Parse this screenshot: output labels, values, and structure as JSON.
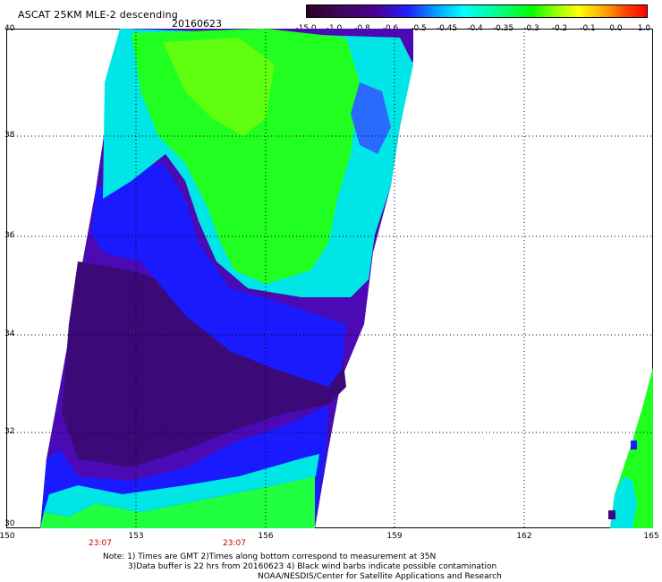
{
  "header": {
    "title": "ASCAT 25KM MLE-2 descending",
    "date": "20160623"
  },
  "colorbar": {
    "labels": [
      "-15.0",
      "-1.0",
      "-0.8",
      "-0.6",
      "-0.5",
      "-0.45",
      "-0.4",
      "-0.35",
      "-0.3",
      "-0.2",
      "-0.1",
      "0.0",
      "1.0"
    ]
  },
  "axes": {
    "lat_labels": [
      "40",
      "38",
      "36",
      "34",
      "32",
      "30"
    ],
    "lon_labels": [
      "150",
      "153",
      "156",
      "159",
      "162",
      "165"
    ],
    "time_labels": [
      "23:07",
      "23:07"
    ]
  },
  "footer": {
    "note_line1": "Note: 1) Times are GMT 2)Times along bottom correspond to measurement at 35N",
    "note_line2": "3)Data buffer is 22 hrs from 20160623 4) Black wind barbs indicate possible contamination",
    "note_line3": "NOAA/NESDIS/Center for Satellite Applications and Research"
  },
  "colors": {
    "deep_purple": "#3c0a78",
    "purple": "#4b0ab4",
    "blue": "#1a1aff",
    "cyan": "#00ffff",
    "aqua": "#00e6c8",
    "green": "#00ff00",
    "lime": "#50ff00"
  }
}
